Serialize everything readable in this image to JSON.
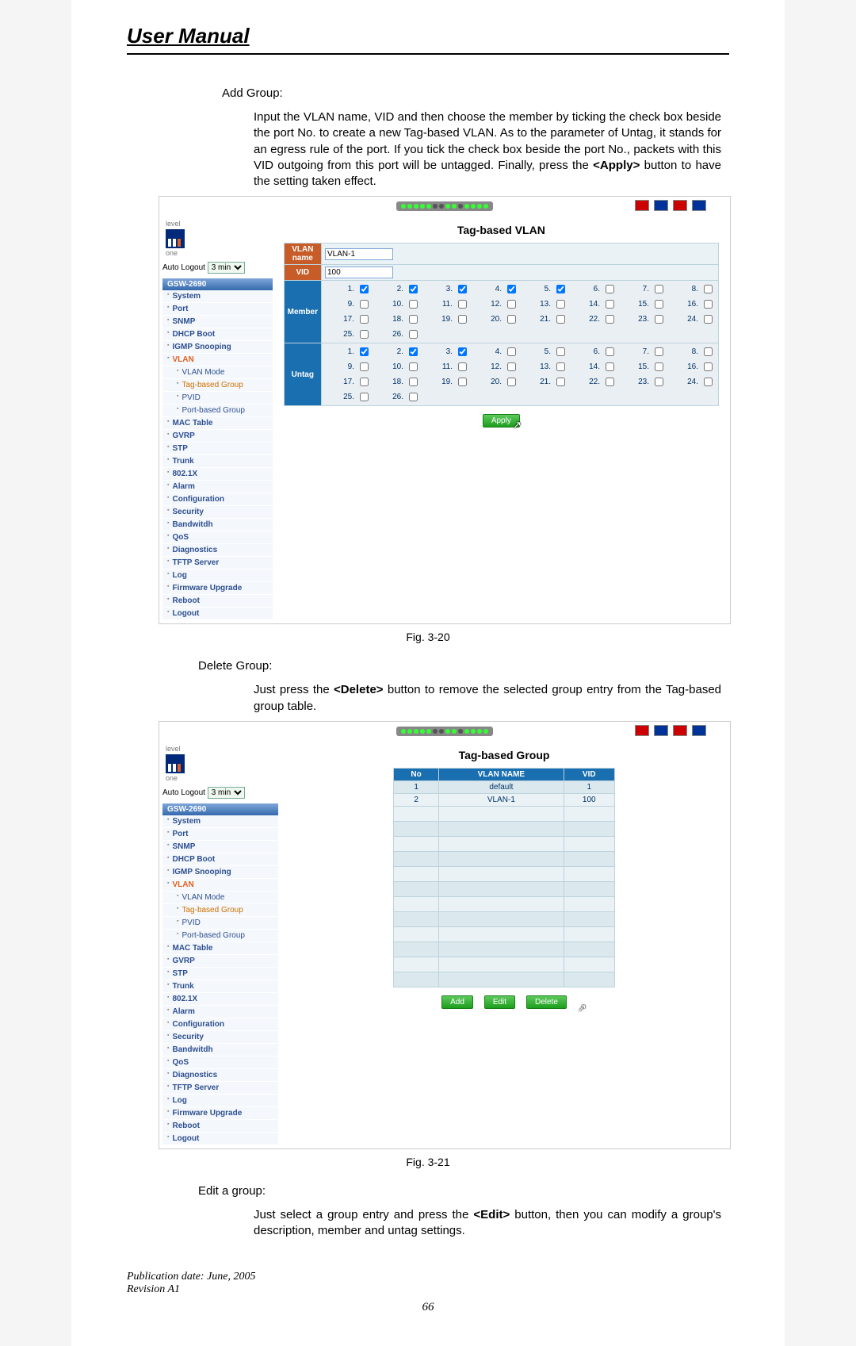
{
  "manual_title": "User Manual",
  "sections": {
    "add_group_label": "Add Group:",
    "add_group_text": "Input the VLAN name, VID and then choose the member by ticking the check box beside the port No. to create a new Tag-based VLAN. As to the parameter of Untag, it stands for an egress rule of the port. If you tick the check box beside the port No., packets with this VID outgoing from this port will be untagged. Finally, press the <Apply> button to have the setting taken effect.",
    "delete_group_label": "Delete Group:",
    "delete_group_text": "Just press the <Delete> button to remove the selected group entry from the Tag-based group table.",
    "edit_group_label": "Edit a group:",
    "edit_group_text": "Just select a group entry and press the  <Edit> button, then you can modify a group's description, member and untag settings."
  },
  "fig320_caption": "Fig. 3-20",
  "fig321_caption": "Fig. 3-21",
  "footer": {
    "pub_date": "Publication date: June, 2005",
    "revision": "Revision A1",
    "page_num": "66"
  },
  "ui": {
    "logo_sub": "one",
    "logo_top": "level",
    "auto_logout_label": "Auto Logout",
    "auto_logout_value": "3 min",
    "model": "GSW-2690",
    "nav": [
      {
        "label": "System",
        "interact": true
      },
      {
        "label": "Port",
        "interact": true
      },
      {
        "label": "SNMP",
        "interact": true
      },
      {
        "label": "DHCP Boot",
        "interact": true
      },
      {
        "label": "IGMP Snooping",
        "interact": true
      },
      {
        "label": "VLAN",
        "interact": true,
        "vlan": true
      },
      {
        "label": "VLAN Mode",
        "interact": true,
        "sub": true
      },
      {
        "label": "Tag-based Group",
        "interact": true,
        "sub": true,
        "active": true
      },
      {
        "label": "PVID",
        "interact": true,
        "sub": true
      },
      {
        "label": "Port-based Group",
        "interact": true,
        "sub": true
      },
      {
        "label": "MAC Table",
        "interact": true
      },
      {
        "label": "GVRP",
        "interact": true
      },
      {
        "label": "STP",
        "interact": true
      },
      {
        "label": "Trunk",
        "interact": true
      },
      {
        "label": "802.1X",
        "interact": true
      },
      {
        "label": "Alarm",
        "interact": true
      },
      {
        "label": "Configuration",
        "interact": true
      },
      {
        "label": "Security",
        "interact": true
      },
      {
        "label": "Bandwitdh",
        "interact": true
      },
      {
        "label": "QoS",
        "interact": true
      },
      {
        "label": "Diagnostics",
        "interact": true
      },
      {
        "label": "TFTP Server",
        "interact": true
      },
      {
        "label": "Log",
        "interact": true
      },
      {
        "label": "Firmware Upgrade",
        "interact": true
      },
      {
        "label": "Reboot",
        "interact": true
      },
      {
        "label": "Logout",
        "interact": true
      }
    ]
  },
  "fig320": {
    "panel_title": "Tag-based VLAN",
    "row_vlan_name_label": "VLAN name",
    "row_vlan_name_value": "VLAN-1",
    "row_vid_label": "VID",
    "row_vid_value": "100",
    "row_member_label": "Member",
    "row_untag_label": "Untag",
    "port_count": 26,
    "member_checked": [
      1,
      2,
      3,
      4,
      5
    ],
    "untag_checked": [
      1,
      2,
      3
    ],
    "apply_btn": "Apply",
    "colors": {
      "row_hdr_orange": "#c75c28",
      "row_hdr_blue": "#1a6fb0",
      "cell_bg": "#eaeff3",
      "cell_border": "#bcd3dd",
      "btn_green_top": "#5cc95c",
      "btn_green_bot": "#1e9e1e"
    }
  },
  "fig321": {
    "panel_title": "Tag-based Group",
    "columns": [
      "No",
      "VLAN NAME",
      "VID"
    ],
    "rows": [
      {
        "no": "1",
        "name": "default",
        "vid": "1"
      },
      {
        "no": "2",
        "name": "VLAN-1",
        "vid": "100"
      }
    ],
    "empty_rows": 12,
    "add_btn": "Add",
    "edit_btn": "Edit",
    "delete_btn": "Delete"
  }
}
